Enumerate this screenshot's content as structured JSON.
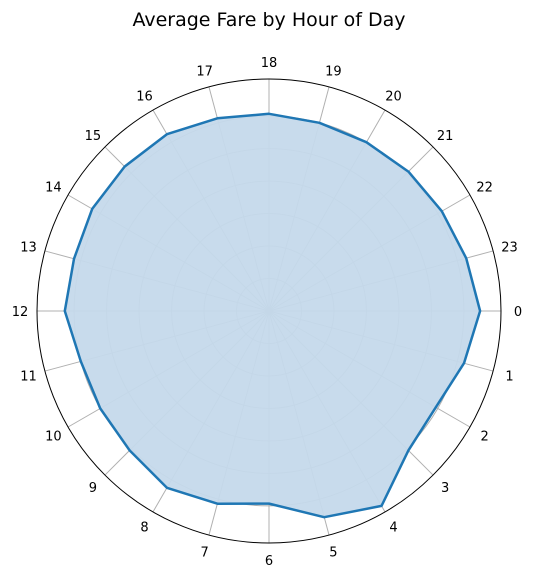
{
  "chart_data": {
    "type": "radar",
    "title": "Average Fare by Hour of Day",
    "categories": [
      "0",
      "1",
      "2",
      "3",
      "4",
      "5",
      "6",
      "7",
      "8",
      "9",
      "10",
      "11",
      "12",
      "13",
      "14",
      "15",
      "16",
      "17",
      "18",
      "19",
      "20",
      "21",
      "22",
      "23"
    ],
    "values": [
      0.91,
      0.87,
      0.83,
      0.85,
      0.97,
      0.92,
      0.83,
      0.86,
      0.88,
      0.85,
      0.84,
      0.84,
      0.88,
      0.87,
      0.88,
      0.88,
      0.88,
      0.86,
      0.85,
      0.84,
      0.84,
      0.85,
      0.86,
      0.88
    ],
    "rlim": [
      0,
      1
    ],
    "grid": true,
    "line_color": "#1f77b4",
    "fill_color": "#c5d9eb"
  }
}
